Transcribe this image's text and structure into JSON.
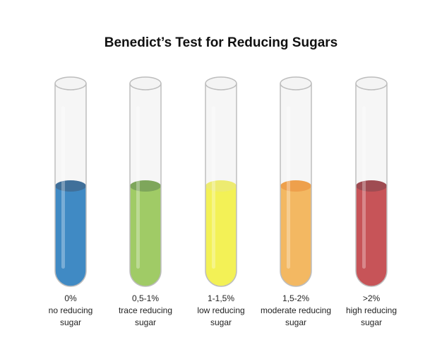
{
  "title": "Benedict’s Test for Reducing Sugars",
  "tubes": [
    {
      "lines": [
        "0%",
        "no reducing",
        "sugar"
      ],
      "color": "#0c6fbd",
      "top_color": "#0d4c85"
    },
    {
      "lines": [
        "0,5-1%",
        "trace reducing",
        "sugar"
      ],
      "color": "#8dc63f",
      "top_color": "#5f9430"
    },
    {
      "lines": [
        "1-1,5%",
        "low reducing",
        "sugar"
      ],
      "color": "#fbf92a",
      "top_color": "#f3f14e"
    },
    {
      "lines": [
        "1,5-2%",
        "moderate reducing",
        "sugar"
      ],
      "color": "#fbac3a",
      "top_color": "#f58c1c"
    },
    {
      "lines": [
        ">2%",
        "high reducing",
        "sugar"
      ],
      "color": "#c1272d",
      "top_color": "#8b1d24"
    }
  ]
}
